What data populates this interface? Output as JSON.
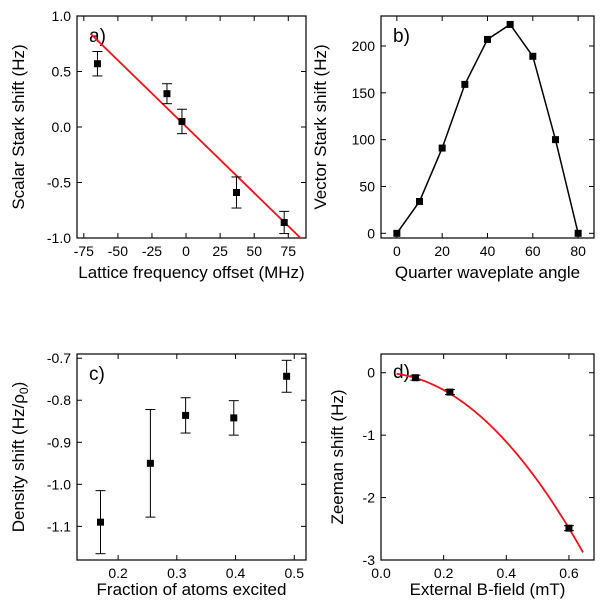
{
  "chart_data": [
    {
      "panel": "a)",
      "type": "scatter",
      "xlabel": "Lattice frequency offset (MHz)",
      "ylabel": "Scalar Stark shift (Hz)",
      "xlim": [
        -80,
        88
      ],
      "ylim": [
        -1.0,
        1.0
      ],
      "xticks": [
        -75,
        -50,
        -25,
        0,
        25,
        50,
        75
      ],
      "xtick_labels": [
        "-75",
        "-50",
        "-25",
        "0",
        "25",
        "50",
        "75"
      ],
      "yticks": [
        -1.0,
        -0.5,
        0.0,
        0.5,
        1.0
      ],
      "ytick_labels": [
        "-1.0",
        "-0.5",
        "0.0",
        "0.5",
        "1.0"
      ],
      "points": [
        {
          "x": -65,
          "y": 0.57,
          "err": 0.11
        },
        {
          "x": -14,
          "y": 0.3,
          "err": 0.09
        },
        {
          "x": -3,
          "y": 0.05,
          "err": 0.11
        },
        {
          "x": 37,
          "y": -0.59,
          "err": 0.14
        },
        {
          "x": 72,
          "y": -0.86,
          "err": 0.1
        }
      ],
      "fit": {
        "type": "line",
        "x": [
          -70,
          84
        ],
        "y": [
          0.84,
          -1.0
        ],
        "color": "#e8141b"
      },
      "marker_color": "#000000"
    },
    {
      "panel": "b)",
      "type": "line",
      "xlabel": "Quarter waveplate angle",
      "ylabel": "Vector Stark shift (Hz)",
      "xlim": [
        -7,
        87
      ],
      "ylim": [
        -5,
        232
      ],
      "xticks": [
        0,
        20,
        40,
        60,
        80
      ],
      "xtick_labels": [
        "0",
        "20",
        "40",
        "60",
        "80"
      ],
      "yticks": [
        0,
        50,
        100,
        150,
        200
      ],
      "ytick_labels": [
        "0",
        "50",
        "100",
        "150",
        "200"
      ],
      "x": [
        0,
        10,
        20,
        30,
        40,
        50,
        60,
        70,
        80
      ],
      "y": [
        0,
        34,
        91,
        159,
        207,
        223,
        189,
        100,
        0
      ],
      "line_color": "#000000"
    },
    {
      "panel": "c)",
      "type": "scatter",
      "xlabel": "Fraction of atoms excited",
      "ylabel": "Density shift (Hz/ρ",
      "ylabel_sub": "0",
      "ylabel_close": ")",
      "xlim": [
        0.13,
        0.52
      ],
      "ylim": [
        -1.18,
        -0.69
      ],
      "xticks": [
        0.2,
        0.3,
        0.4,
        0.5
      ],
      "xtick_labels": [
        "0.2",
        "0.3",
        "0.4",
        "0.5"
      ],
      "yticks": [
        -1.1,
        -1.0,
        -0.9,
        -0.8,
        -0.7
      ],
      "ytick_labels": [
        "-1.1",
        "-1.0",
        "-0.9",
        "-0.8",
        "-0.7"
      ],
      "points": [
        {
          "x": 0.17,
          "y": -1.09,
          "err": 0.075
        },
        {
          "x": 0.255,
          "y": -0.95,
          "err": 0.128
        },
        {
          "x": 0.315,
          "y": -0.836,
          "err": 0.042
        },
        {
          "x": 0.397,
          "y": -0.842,
          "err": 0.041
        },
        {
          "x": 0.487,
          "y": -0.743,
          "err": 0.038
        }
      ],
      "marker_color": "#000000"
    },
    {
      "panel": "d)",
      "type": "scatter",
      "xlabel": "External B-field (mT)",
      "ylabel": "Zeeman shift (Hz)",
      "xlim": [
        0,
        0.68
      ],
      "ylim": [
        -3.0,
        0.3
      ],
      "xticks": [
        0.0,
        0.2,
        0.4,
        0.6
      ],
      "xtick_labels": [
        "0.0",
        "0.2",
        "0.4",
        "0.6"
      ],
      "yticks": [
        -3,
        -2,
        -1,
        0
      ],
      "ytick_labels": [
        "-3",
        "-2",
        "-1",
        "0"
      ],
      "points": [
        {
          "x": 0.11,
          "y": -0.08,
          "err": 0.04
        },
        {
          "x": 0.22,
          "y": -0.31,
          "err": 0.04
        },
        {
          "x": 0.6,
          "y": -2.49,
          "err": 0.04
        }
      ],
      "fit": {
        "type": "quadratic",
        "coef": -6.92,
        "x": [
          0.05,
          0.645
        ],
        "color": "#e8141b"
      },
      "marker_color": "#000000"
    }
  ]
}
